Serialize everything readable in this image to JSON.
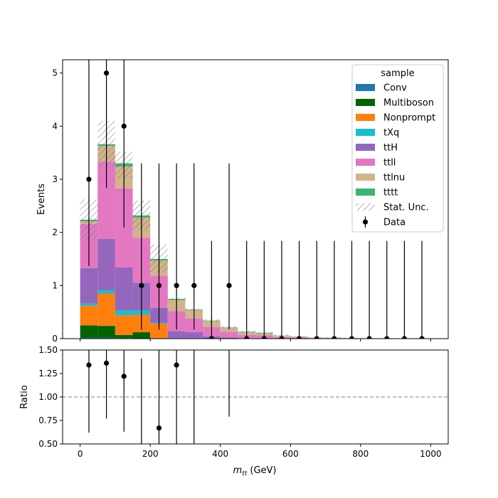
{
  "chart_data": [
    {
      "type": "bar",
      "stacked": true,
      "ylabel": "Events",
      "xlabel": "",
      "xlim": [
        -50,
        1050
      ],
      "ylim": [
        0,
        5.25
      ],
      "xticks": [
        0,
        200,
        400,
        600,
        800,
        1000
      ],
      "xtick_labels": [],
      "yticks": [
        0,
        1,
        2,
        3,
        4,
        5
      ],
      "ytick_labels": [
        "0",
        "1",
        "2",
        "3",
        "4",
        "5"
      ],
      "bin_width": 50,
      "bin_edges": [
        0,
        50,
        100,
        150,
        200,
        250,
        300,
        350,
        400,
        450,
        500,
        550,
        600,
        650,
        700,
        750,
        800,
        850,
        900,
        950,
        1000
      ],
      "series": [
        {
          "name": "Conv",
          "color": "#1f77b4",
          "values": [
            0.02,
            0.02,
            0.01,
            0.0,
            0.0,
            0.0,
            0.0,
            0.0,
            0.0,
            0.0,
            0.0,
            0.0,
            0.0,
            0.0,
            0.0,
            0.0,
            0.0,
            0.0,
            0.0,
            0.0
          ]
        },
        {
          "name": "Multiboson",
          "color": "#006400",
          "values": [
            0.23,
            0.22,
            0.06,
            0.12,
            0.01,
            0.0,
            0.0,
            0.0,
            0.0,
            0.0,
            0.0,
            0.0,
            0.0,
            0.0,
            0.0,
            0.0,
            0.0,
            0.0,
            0.0,
            0.0
          ]
        },
        {
          "name": "Nonprompt",
          "color": "#ff7f0e",
          "values": [
            0.37,
            0.61,
            0.37,
            0.33,
            0.27,
            0.0,
            0.0,
            0.0,
            0.0,
            0.0,
            0.0,
            0.0,
            0.0,
            0.0,
            0.0,
            0.0,
            0.0,
            0.0,
            0.0,
            0.0
          ]
        },
        {
          "name": "tXq",
          "color": "#17becf",
          "values": [
            0.04,
            0.06,
            0.09,
            0.08,
            0.02,
            0.01,
            0.01,
            0.0,
            0.0,
            0.0,
            0.0,
            0.0,
            0.0,
            0.0,
            0.0,
            0.0,
            0.0,
            0.0,
            0.0,
            0.0
          ]
        },
        {
          "name": "ttH",
          "color": "#9467bd",
          "values": [
            0.67,
            0.97,
            0.81,
            0.52,
            0.28,
            0.13,
            0.11,
            0.04,
            0.02,
            0.01,
            0.01,
            0.0,
            0.0,
            0.0,
            0.0,
            0.0,
            0.0,
            0.0,
            0.0,
            0.0
          ]
        },
        {
          "name": "ttll",
          "color": "#e377c2",
          "values": [
            0.83,
            1.45,
            1.49,
            0.85,
            0.61,
            0.38,
            0.26,
            0.18,
            0.11,
            0.06,
            0.05,
            0.03,
            0.02,
            0.01,
            0.01,
            0.0,
            0.0,
            0.0,
            0.0,
            0.0
          ]
        },
        {
          "name": "ttlnu",
          "color": "#d2b48c",
          "values": [
            0.05,
            0.3,
            0.41,
            0.38,
            0.28,
            0.21,
            0.16,
            0.11,
            0.07,
            0.05,
            0.04,
            0.03,
            0.02,
            0.01,
            0.01,
            0.01,
            0.0,
            0.0,
            0.0,
            0.0
          ]
        },
        {
          "name": "tttt",
          "color": "#3cb371",
          "values": [
            0.03,
            0.03,
            0.06,
            0.04,
            0.03,
            0.02,
            0.01,
            0.01,
            0.01,
            0.01,
            0.01,
            0.0,
            0.0,
            0.0,
            0.0,
            0.0,
            0.0,
            0.0,
            0.0,
            0.0
          ]
        }
      ],
      "stat_unc": {
        "name": "Stat. Unc.",
        "up": [
          2.62,
          4.1,
          3.52,
          2.6,
          1.77,
          0.77,
          0.57,
          0.37,
          0.24,
          0.15,
          0.13,
          0.08,
          0.05,
          0.03,
          0.03,
          0.02,
          0.01,
          0.01,
          0.01,
          0.01
        ],
        "down": [
          1.87,
          3.24,
          3.02,
          2.05,
          1.25,
          0.72,
          0.53,
          0.32,
          0.2,
          0.11,
          0.09,
          0.05,
          0.03,
          0.01,
          0.01,
          0.0,
          0.0,
          0.0,
          0.0,
          0.0
        ]
      },
      "data_points": {
        "name": "Data",
        "x": [
          25,
          75,
          125,
          175,
          225,
          275,
          325,
          375,
          425,
          475,
          525,
          575,
          625,
          675,
          725,
          775,
          825,
          875,
          925,
          975
        ],
        "y": [
          3,
          5,
          4,
          1,
          1,
          1,
          1,
          0,
          1,
          0,
          0,
          0,
          0,
          0,
          0,
          0,
          0,
          0,
          0,
          0
        ],
        "yerr_low": [
          1.63,
          2.16,
          1.91,
          0.83,
          0.83,
          0.83,
          0.83,
          0,
          0.83,
          0,
          0,
          0,
          0,
          0,
          0,
          0,
          0,
          0,
          0,
          0
        ],
        "yerr_high": [
          2.92,
          3.38,
          3.16,
          2.3,
          2.3,
          2.3,
          2.3,
          1.84,
          2.3,
          1.84,
          1.84,
          1.84,
          1.84,
          1.84,
          1.84,
          1.84,
          1.84,
          1.84,
          1.84,
          1.84
        ]
      },
      "legend": {
        "title": "sample",
        "placement": "upper-right",
        "entries": [
          "Conv",
          "Multiboson",
          "Nonprompt",
          "tXq",
          "ttH",
          "ttll",
          "ttlnu",
          "tttt",
          "Stat. Unc.",
          "Data"
        ]
      }
    },
    {
      "type": "scatter",
      "ylabel": "Ratio",
      "xlabel": "m_tt (GeV)",
      "xlabel_main": "m",
      "xlabel_sub": "tt",
      "xlabel_unit": " (GeV)",
      "xlim": [
        -50,
        1050
      ],
      "ylim": [
        0.5,
        1.5
      ],
      "xticks": [
        0,
        200,
        400,
        600,
        800,
        1000
      ],
      "xtick_labels": [
        "0",
        "200",
        "400",
        "600",
        "800",
        "1000"
      ],
      "yticks": [
        0.5,
        0.75,
        1.0,
        1.25,
        1.5
      ],
      "ytick_labels": [
        "0.50",
        "0.75",
        "1.00",
        "1.25",
        "1.50"
      ],
      "reference_line": 1.0,
      "points": [
        {
          "x": 25,
          "y": 1.34,
          "lo": 0.62,
          "hi": 1.6
        },
        {
          "x": 75,
          "y": 1.36,
          "lo": 0.77,
          "hi": 1.6
        },
        {
          "x": 125,
          "y": 1.22,
          "lo": 0.63,
          "hi": 1.6
        },
        {
          "x": 175,
          "y": null,
          "lo": 0.4,
          "hi": 1.41
        },
        {
          "x": 225,
          "y": 0.67,
          "lo": 0.4,
          "hi": 1.6
        },
        {
          "x": 275,
          "y": 1.34,
          "lo": 0.4,
          "hi": 1.6
        },
        {
          "x": 325,
          "y": null,
          "lo": 0.4,
          "hi": 1.6
        },
        {
          "x": 425,
          "y": null,
          "lo": 0.79,
          "hi": 1.6
        }
      ]
    }
  ]
}
